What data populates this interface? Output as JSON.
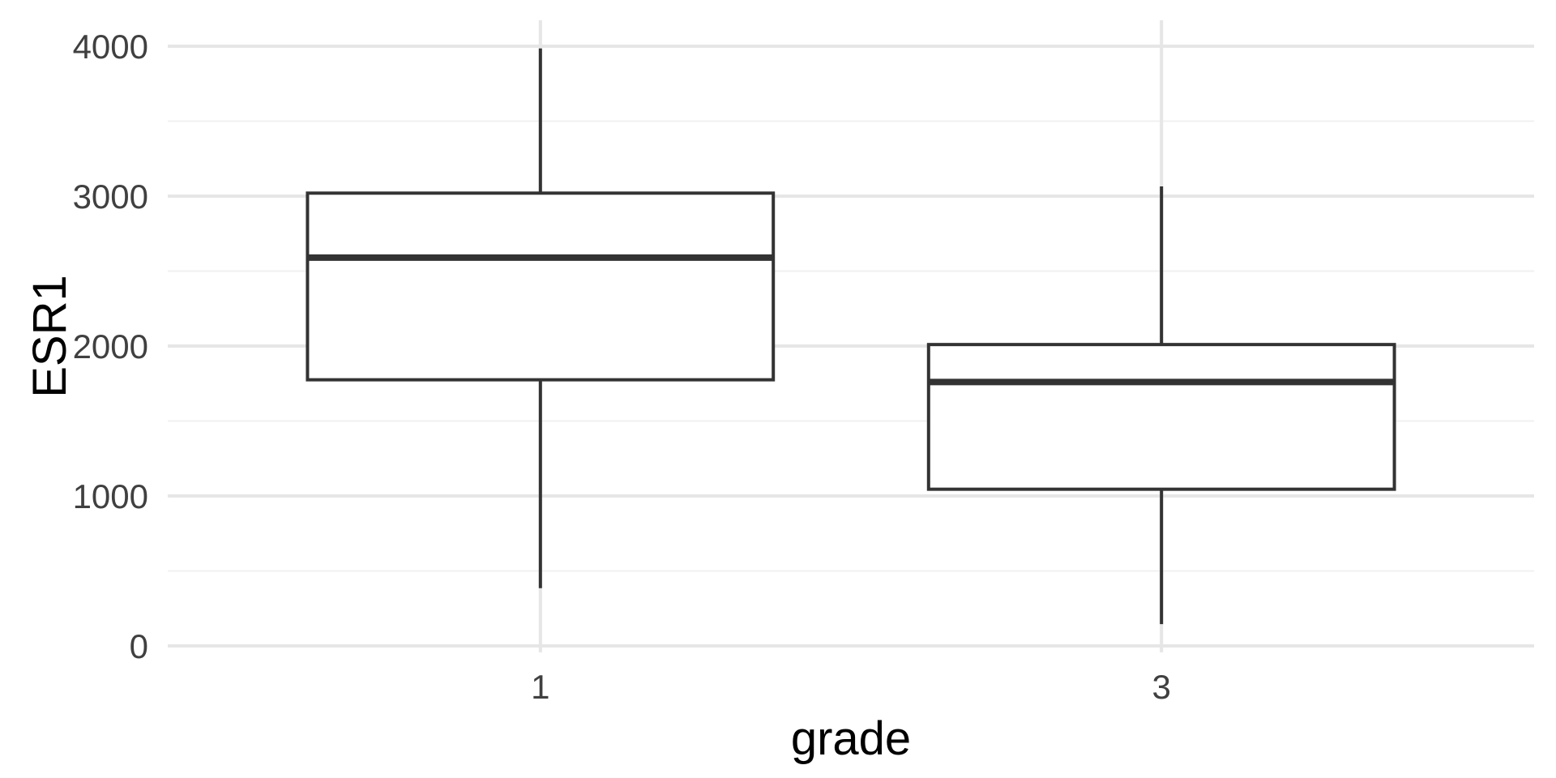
{
  "chart_data": {
    "type": "boxplot",
    "title": "",
    "xlabel": "grade",
    "ylabel": "ESR1",
    "categories": [
      "1",
      "3"
    ],
    "y_ticks": [
      0,
      1000,
      2000,
      3000,
      4000
    ],
    "y_minor_ticks": [
      500,
      1500,
      2500,
      3500
    ],
    "ylim": [
      -45,
      4175
    ],
    "grid": true,
    "legend_position": "none",
    "series": [
      {
        "category": "1",
        "whisker_low": 385,
        "q1": 1775,
        "median": 2590,
        "q3": 3020,
        "whisker_high": 3985,
        "outliers": []
      },
      {
        "category": "3",
        "whisker_low": 145,
        "q1": 1045,
        "median": 1760,
        "q3": 2010,
        "whisker_high": 3065,
        "outliers": []
      }
    ],
    "colors": {
      "background": "#ffffff",
      "panel_background": "#ffffff",
      "grid_major": "#e6e6e6",
      "grid_minor": "#f0f0f0",
      "box_border": "#333333",
      "box_fill": "#ffffff",
      "median_line": "#333333",
      "whisker": "#333333",
      "tick_label": "#404040",
      "axis_title": "#000000"
    }
  }
}
